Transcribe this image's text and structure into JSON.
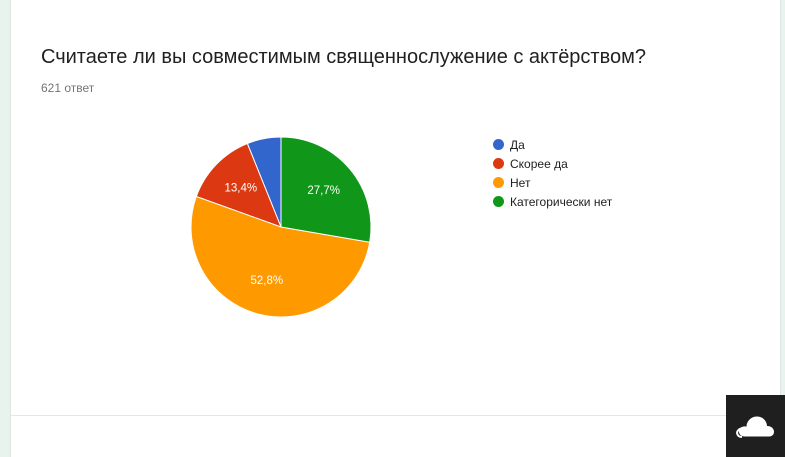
{
  "form": {
    "question": "Считаете ли вы совместимым священнослужение с актёрством?",
    "responses": "621 ответ"
  },
  "chart_data": {
    "type": "pie",
    "start_angle_deg": 90,
    "direction": "counterclockwise",
    "slices": [
      {
        "label": "Да",
        "value": 6.1,
        "color": "#3366cc",
        "data_label": ""
      },
      {
        "label": "Скорее да",
        "value": 13.4,
        "color": "#dc3912",
        "data_label": "13,4%"
      },
      {
        "label": "Нет",
        "value": 52.8,
        "color": "#ff9900",
        "data_label": "52,8%"
      },
      {
        "label": "Категорически нет",
        "value": 27.7,
        "color": "#109618",
        "data_label": "27,7%"
      }
    ],
    "legend_position": "right"
  },
  "widgets": {
    "cloud_icon": "cloud-icon"
  }
}
